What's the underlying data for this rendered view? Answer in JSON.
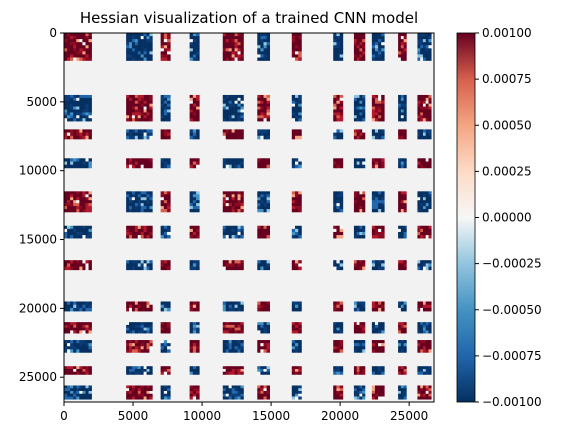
{
  "chart_data": {
    "type": "heatmap",
    "title": "Hessian visualization of a trained CNN model",
    "xlabel": "",
    "ylabel": "",
    "xlim": [
      0,
      26800
    ],
    "ylim": [
      26800,
      0
    ],
    "x_ticks": [
      0,
      5000,
      10000,
      15000,
      20000,
      25000
    ],
    "y_ticks": [
      0,
      5000,
      10000,
      15000,
      20000,
      25000
    ],
    "colorbar": {
      "range": [
        -0.001,
        0.001
      ],
      "ticks": [
        "0.00100",
        "0.00075",
        "0.00050",
        "0.00025",
        "0.00000",
        "−0.00025",
        "−0.00050",
        "−0.00075",
        "−0.00100"
      ],
      "colormap": "RdBu_r",
      "low_color": "#053061",
      "mid_color": "#f7f7f7",
      "high_color": "#67001f"
    },
    "background_color": "#f2f2f2",
    "blocks": {
      "description_ranges_in_parameter_index": true,
      "bands": [
        {
          "start": 0,
          "end": 2000,
          "sign": 1
        },
        {
          "start": 4500,
          "end": 6400,
          "sign": -1
        },
        {
          "start": 7000,
          "end": 7700,
          "sign": 1
        },
        {
          "start": 9100,
          "end": 9800,
          "sign": -1
        },
        {
          "start": 11500,
          "end": 13000,
          "sign": 1
        },
        {
          "start": 14000,
          "end": 14900,
          "sign": -1
        },
        {
          "start": 16500,
          "end": 17200,
          "sign": 1
        },
        {
          "start": 19500,
          "end": 20200,
          "sign": -1
        },
        {
          "start": 21000,
          "end": 21800,
          "sign": 1
        },
        {
          "start": 22300,
          "end": 23200,
          "sign": -1
        },
        {
          "start": 24200,
          "end": 24800,
          "sign": 1
        },
        {
          "start": 25600,
          "end": 26600,
          "sign": -1
        }
      ]
    }
  }
}
